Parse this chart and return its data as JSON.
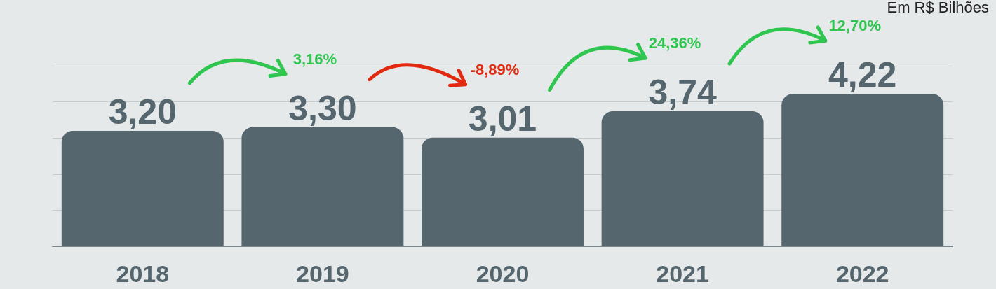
{
  "chart_data": {
    "type": "bar",
    "categories": [
      "2018",
      "2019",
      "2020",
      "2021",
      "2022"
    ],
    "values": [
      3.2,
      3.3,
      3.01,
      3.74,
      4.22
    ],
    "value_labels": [
      "3,20",
      "3,30",
      "3,01",
      "3,74",
      "4,22"
    ],
    "color": "#56666e",
    "ylim": [
      0,
      5
    ],
    "yticks": [
      {
        "value": 0,
        "label": null
      },
      {
        "value": 1,
        "label": null
      },
      {
        "value": 2,
        "label": null
      },
      {
        "value": 3,
        "label": null
      },
      {
        "value": 4,
        "label": null
      },
      {
        "value": 5,
        "label": null
      }
    ],
    "grid": "y",
    "tick_labels": "x",
    "annotations": [
      "3,16%",
      "-8,89%",
      "24,36%",
      "12,70%",
      "Em R$ Bilhões"
    ]
  }
}
